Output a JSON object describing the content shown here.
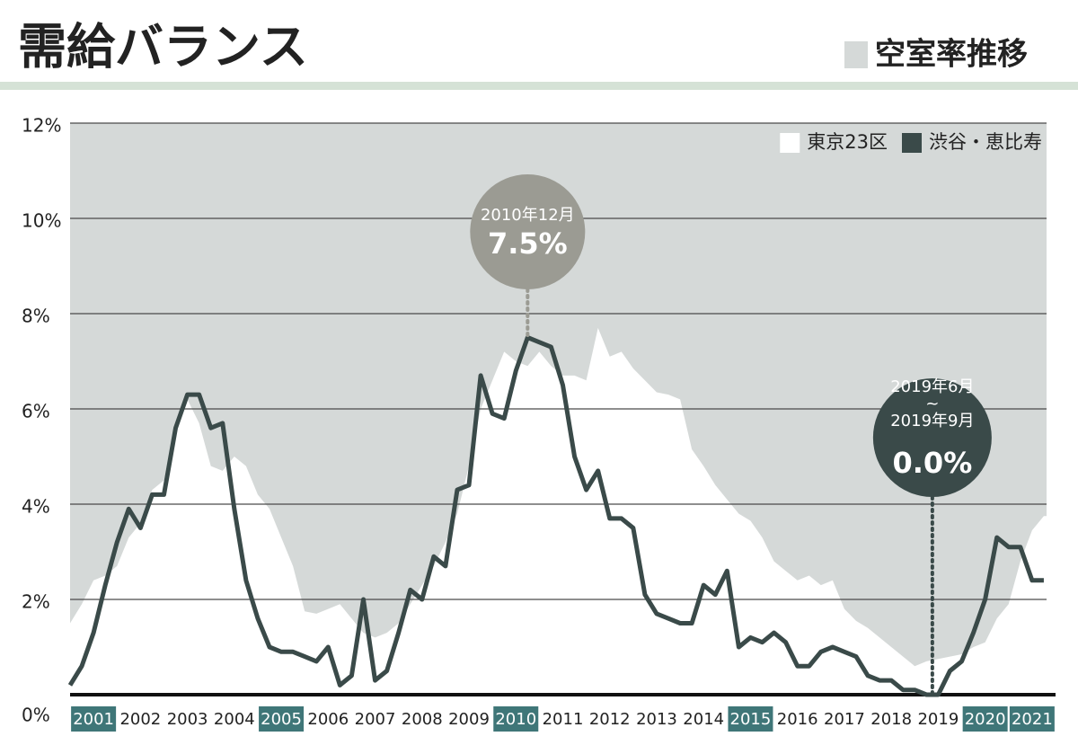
{
  "chart_data": {
    "type": "line",
    "title": "需給バランス",
    "subtitle": "空室率推移",
    "subtitle_color": "#d5d9d8",
    "plot_background": "#d5d9d8",
    "grid": true,
    "legend": "upper right",
    "xlim": [
      2001,
      2022
    ],
    "ylim": [
      0,
      12
    ],
    "yticks": [
      {
        "value": 0,
        "label": "0%"
      },
      {
        "value": 2,
        "label": "2%"
      },
      {
        "value": 4,
        "label": "4%"
      },
      {
        "value": 6,
        "label": "6%"
      },
      {
        "value": 8,
        "label": "8%"
      },
      {
        "value": 10,
        "label": "10%"
      },
      {
        "value": 12,
        "label": "12%"
      }
    ],
    "xticks": [
      {
        "value": 2001.5,
        "label": "2001",
        "highlight": true
      },
      {
        "value": 2002.5,
        "label": "2002"
      },
      {
        "value": 2003.5,
        "label": "2003"
      },
      {
        "value": 2004.5,
        "label": "2004"
      },
      {
        "value": 2005.5,
        "label": "2005",
        "highlight": true
      },
      {
        "value": 2006.5,
        "label": "2006"
      },
      {
        "value": 2007.5,
        "label": "2007"
      },
      {
        "value": 2008.5,
        "label": "2008"
      },
      {
        "value": 2009.5,
        "label": "2009"
      },
      {
        "value": 2010.5,
        "label": "2010",
        "highlight": true
      },
      {
        "value": 2011.5,
        "label": "2011"
      },
      {
        "value": 2012.5,
        "label": "2012"
      },
      {
        "value": 2013.5,
        "label": "2013"
      },
      {
        "value": 2014.5,
        "label": "2014"
      },
      {
        "value": 2015.5,
        "label": "2015",
        "highlight": true
      },
      {
        "value": 2016.5,
        "label": "2016"
      },
      {
        "value": 2017.5,
        "label": "2017"
      },
      {
        "value": 2018.5,
        "label": "2018"
      },
      {
        "value": 2019.5,
        "label": "2019"
      },
      {
        "value": 2020.5,
        "label": "2020",
        "highlight": true
      },
      {
        "value": 2021.5,
        "label": "2021",
        "highlight": true
      }
    ],
    "highlight_color": "#3f7678",
    "x": [
      2001,
      2001.25,
      2001.5,
      2001.75,
      2002,
      2002.25,
      2002.5,
      2002.75,
      2003,
      2003.25,
      2003.5,
      2003.75,
      2004,
      2004.25,
      2004.5,
      2004.75,
      2005,
      2005.25,
      2005.5,
      2005.75,
      2006,
      2006.25,
      2006.5,
      2006.75,
      2007,
      2007.25,
      2007.5,
      2007.75,
      2008,
      2008.25,
      2008.5,
      2008.75,
      2009,
      2009.25,
      2009.5,
      2009.75,
      2010,
      2010.25,
      2010.5,
      2010.75,
      2011,
      2011.25,
      2011.5,
      2011.75,
      2012,
      2012.25,
      2012.5,
      2012.75,
      2013,
      2013.25,
      2013.5,
      2013.75,
      2014,
      2014.25,
      2014.5,
      2014.75,
      2015,
      2015.25,
      2015.5,
      2015.75,
      2016,
      2016.25,
      2016.5,
      2016.75,
      2017,
      2017.25,
      2017.5,
      2017.75,
      2018,
      2018.25,
      2018.5,
      2018.75,
      2019,
      2019.25,
      2019.5,
      2019.75,
      2020,
      2020.25,
      2020.5,
      2020.75,
      2021,
      2021.25,
      2021.5,
      2021.75
    ],
    "series": [
      {
        "name": "東京23区",
        "style": "area",
        "color": "#ffffff",
        "values": [
          1.5,
          1.9,
          2.4,
          2.5,
          2.7,
          3.3,
          3.6,
          4.3,
          4.5,
          5.7,
          6.2,
          5.7,
          4.8,
          4.7,
          5.0,
          4.8,
          4.2,
          3.9,
          3.3,
          2.7,
          1.75,
          1.7,
          1.8,
          1.9,
          1.6,
          1.3,
          1.2,
          1.3,
          1.5,
          1.9,
          2.3,
          2.7,
          3.2,
          3.8,
          4.8,
          6.0,
          6.6,
          7.2,
          7.0,
          6.9,
          7.2,
          6.9,
          6.7,
          6.7,
          6.6,
          7.7,
          7.1,
          7.2,
          6.85,
          6.6,
          6.35,
          6.3,
          6.2,
          5.15,
          4.8,
          4.4,
          4.1,
          3.8,
          3.65,
          3.3,
          2.8,
          2.6,
          2.4,
          2.5,
          2.3,
          2.4,
          1.8,
          1.55,
          1.4,
          1.2,
          1.0,
          0.8,
          0.6,
          0.7,
          0.75,
          0.8,
          0.85,
          1.0,
          1.1,
          1.6,
          1.9,
          2.8,
          3.45,
          3.75
        ]
      },
      {
        "name": "渋谷・恵比寿",
        "style": "line",
        "color": "#3a4a49",
        "values": [
          0.2,
          0.6,
          1.3,
          2.3,
          3.2,
          3.9,
          3.5,
          4.2,
          4.2,
          5.6,
          6.3,
          6.3,
          5.6,
          5.7,
          3.9,
          2.4,
          1.6,
          1.0,
          0.9,
          0.9,
          0.8,
          0.7,
          1.0,
          0.2,
          0.4,
          2.0,
          0.3,
          0.5,
          1.3,
          2.2,
          2.0,
          2.9,
          2.7,
          4.3,
          4.4,
          6.7,
          5.9,
          5.8,
          6.8,
          7.5,
          7.4,
          7.3,
          6.5,
          5.0,
          4.3,
          4.7,
          3.7,
          3.7,
          3.5,
          2.1,
          1.7,
          1.6,
          1.5,
          1.5,
          2.3,
          2.1,
          2.6,
          1.0,
          1.2,
          1.1,
          1.3,
          1.1,
          0.6,
          0.6,
          0.9,
          1.0,
          0.9,
          0.8,
          0.4,
          0.3,
          0.3,
          0.1,
          0.1,
          0,
          0,
          0.5,
          0.7,
          1.3,
          2.0,
          3.3,
          3.1,
          3.1,
          2.4,
          2.4
        ]
      }
    ],
    "annotations": [
      {
        "date_lines": [
          "2010年12月"
        ],
        "label": "7.5%",
        "value": 7.5,
        "color": "#9b9b93"
      },
      {
        "date_lines": [
          "2019年6月",
          "~",
          "2019年9月"
        ],
        "label": "0.0%",
        "value": 0,
        "color": "#3a4a49"
      }
    ]
  }
}
